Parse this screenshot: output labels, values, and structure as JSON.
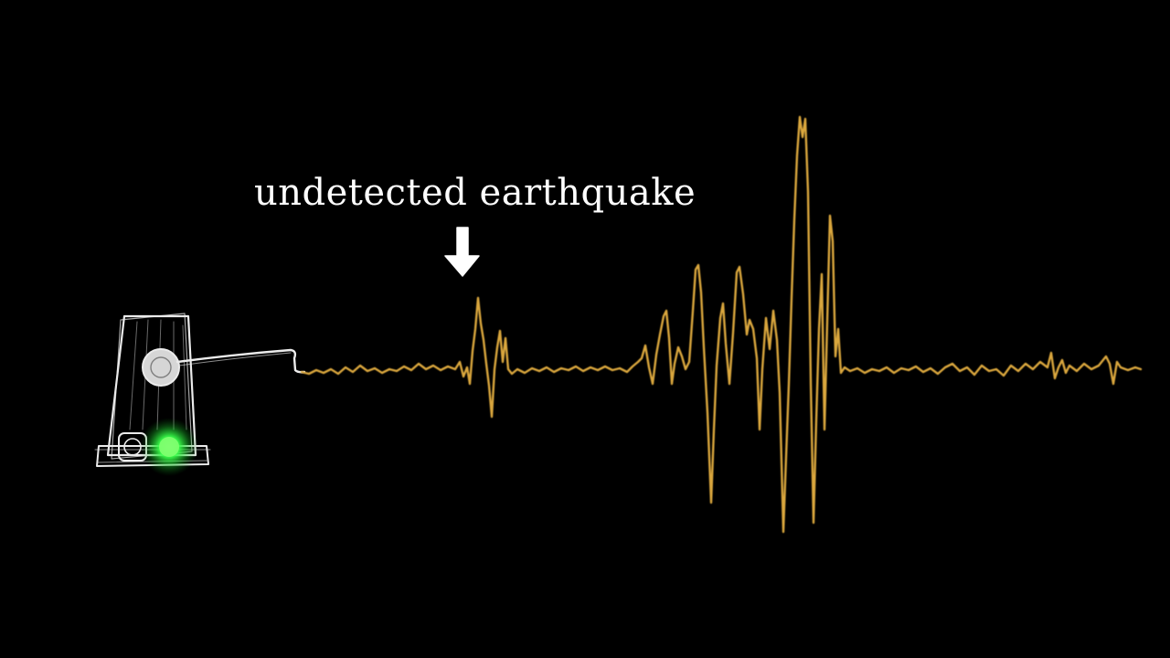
{
  "annotation": {
    "text": "undetected earthquake"
  },
  "colors": {
    "background": "#000000",
    "trace": "#d9a63c",
    "sketch": "#ffffff",
    "indicator_light": "#39ff4a",
    "annotation": "#ffffff"
  },
  "icons": {
    "seismometer": "seismometer-sketch-icon",
    "arrow": "down-arrow-icon",
    "light": "green-indicator-light-icon"
  }
}
